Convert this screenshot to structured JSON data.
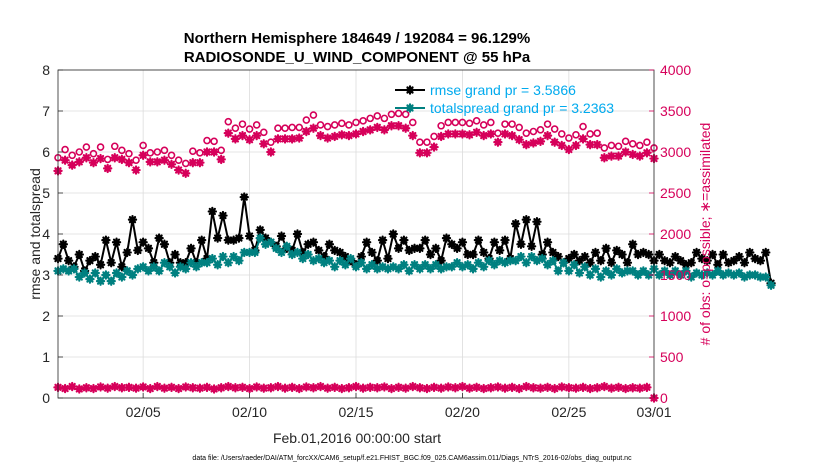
{
  "chart_data": {
    "type": "line",
    "title_line1": "Northern Hemisphere 184649 / 192084 = 96.129%",
    "title_line2": "RADIOSONDE_U_WIND_COMPONENT @ 55 hPa",
    "xlabel": "Feb.01,2016 00:00:00 start",
    "ylabel_left": "rmse and totalspread",
    "ylabel_right": "# of obs: o=possible; ∗=assimilated",
    "footer": "data file: /Users/raeder/DAI/ATM_forcXX/CAM6_setup/f.e21.FHIST_BGC.f09_025.CAM6assim.011/Diags_NTrS_2016-02/obs_diag_output.nc",
    "xlim": [
      1,
      29
    ],
    "ylim_left": [
      0,
      8
    ],
    "ylim_right": [
      0,
      4000
    ],
    "x_ticks": [
      5,
      10,
      15,
      20,
      25,
      29
    ],
    "x_tick_labels": [
      "02/05",
      "02/10",
      "02/15",
      "02/20",
      "02/25",
      "03/01"
    ],
    "y_left_ticks": [
      "0",
      "1",
      "2",
      "3",
      "4",
      "5",
      "6",
      "7",
      "8"
    ],
    "y_right_ticks": [
      "0",
      "500",
      "1000",
      "1500",
      "2000",
      "2500",
      "3000",
      "3500",
      "4000"
    ],
    "step_days": 0.25,
    "colors": {
      "rmse": "#000000",
      "spread": "#008080",
      "obs": "#d6005a",
      "legend_text": "#00aaee"
    },
    "series": [
      {
        "name": "rmse grand pr = 3.5866",
        "axis": "left",
        "color": "#000000",
        "marker": "star",
        "values": [
          3.4,
          3.75,
          3.35,
          3.2,
          3.5,
          3.1,
          3.35,
          3.45,
          3.25,
          3.85,
          3.3,
          3.8,
          3.2,
          3.55,
          4.35,
          3.6,
          3.8,
          3.65,
          3.3,
          3.9,
          3.75,
          3.3,
          3.5,
          3.3,
          3.3,
          3.65,
          3.3,
          3.85,
          3.4,
          4.55,
          3.9,
          4.45,
          3.85,
          3.85,
          3.9,
          4.9,
          3.95,
          3.6,
          4.1,
          3.9,
          3.8,
          3.7,
          3.95,
          3.65,
          3.6,
          4.0,
          3.55,
          3.75,
          3.8,
          3.6,
          3.45,
          3.75,
          3.6,
          3.55,
          3.45,
          3.35,
          3.25,
          3.45,
          3.8,
          3.55,
          3.35,
          3.85,
          3.4,
          4.0,
          3.65,
          3.85,
          3.6,
          3.65,
          3.65,
          3.85,
          3.5,
          3.65,
          3.35,
          3.9,
          3.75,
          3.65,
          3.8,
          3.5,
          3.5,
          3.85,
          3.55,
          3.4,
          3.8,
          3.6,
          3.85,
          3.4,
          4.25,
          3.75,
          4.35,
          3.7,
          4.3,
          3.5,
          3.8,
          3.55,
          3.45,
          3.3,
          3.4,
          3.5,
          3.35,
          3.45,
          3.3,
          3.55,
          3.35,
          3.65,
          3.3,
          3.6,
          3.5,
          3.3,
          3.75,
          3.5,
          3.55,
          3.5,
          3.35,
          3.5,
          3.35,
          3.3,
          3.45,
          3.35,
          3.25,
          3.3,
          3.55,
          3.4,
          3.35,
          3.5,
          3.25,
          3.5,
          3.3,
          3.35,
          3.45,
          3.3,
          3.55,
          3.4,
          3.35,
          3.55,
          2.8
        ]
      },
      {
        "name": "totalspread grand pr = 3.2363",
        "axis": "left",
        "color": "#008080",
        "marker": "star",
        "values": [
          3.1,
          3.15,
          3.1,
          3.15,
          2.95,
          3.05,
          2.9,
          3.05,
          2.85,
          3.0,
          2.85,
          3.05,
          2.95,
          3.1,
          3.0,
          3.15,
          3.2,
          3.1,
          3.2,
          3.1,
          3.3,
          3.2,
          3.05,
          3.2,
          3.15,
          3.3,
          3.2,
          3.3,
          3.3,
          3.4,
          3.25,
          3.45,
          3.3,
          3.45,
          3.35,
          3.55,
          3.55,
          3.55,
          3.9,
          3.75,
          3.8,
          3.65,
          3.55,
          3.7,
          3.5,
          3.55,
          3.4,
          3.5,
          3.35,
          3.4,
          3.3,
          3.35,
          3.2,
          3.35,
          3.25,
          3.4,
          3.2,
          3.3,
          3.15,
          3.25,
          3.15,
          3.2,
          3.15,
          3.2,
          3.15,
          3.25,
          3.1,
          3.25,
          3.15,
          3.25,
          3.15,
          3.25,
          3.15,
          3.2,
          3.2,
          3.3,
          3.2,
          3.25,
          3.15,
          3.3,
          3.2,
          3.35,
          3.25,
          3.35,
          3.3,
          3.35,
          3.35,
          3.45,
          3.3,
          3.45,
          3.35,
          3.4,
          3.25,
          3.35,
          3.1,
          3.3,
          3.1,
          3.25,
          3.05,
          3.2,
          3.0,
          3.15,
          2.95,
          3.1,
          3.0,
          3.15,
          3.05,
          3.1,
          3.1,
          3.0,
          3.1,
          3.0,
          3.15,
          3.0,
          3.1,
          3.0,
          3.1,
          3.0,
          3.1,
          2.95,
          3.05,
          3.0,
          3.05,
          3.0,
          3.1,
          3.0,
          3.05,
          3.0,
          3.05,
          2.95,
          3.0,
          3.0,
          2.95,
          2.95,
          2.75
        ]
      },
      {
        "name": "possible",
        "axis": "right",
        "color": "#d6005a",
        "marker": "circle",
        "values": [
          2930,
          3030,
          2960,
          3000,
          3060,
          2980,
          3060,
          2910,
          3070,
          3020,
          2980,
          2900,
          3080,
          2990,
          3000,
          3020,
          2960,
          2900,
          2860,
          3010,
          2990,
          3140,
          3130,
          3020,
          3370,
          3290,
          3340,
          3280,
          3330,
          3240,
          3120,
          3290,
          3290,
          3300,
          3300,
          3390,
          3450,
          3330,
          3310,
          3330,
          3350,
          3330,
          3360,
          3380,
          3410,
          3440,
          3410,
          3460,
          3470,
          3460,
          3360,
          3120,
          3120,
          3190,
          3320,
          3360,
          3360,
          3360,
          3350,
          3380,
          3330,
          3360,
          3230,
          3340,
          3340,
          3300,
          3230,
          3250,
          3270,
          3340,
          3280,
          3220,
          3170,
          3210,
          3310,
          3220,
          3230,
          3050,
          3080,
          3070,
          3130,
          3100,
          3080,
          3120,
          3050
        ]
      },
      {
        "name": "assimilated",
        "axis": "right",
        "color": "#d6005a",
        "marker": "star",
        "values": [
          2770,
          2900,
          2840,
          2880,
          2930,
          2870,
          2920,
          2800,
          2930,
          2910,
          2870,
          2780,
          2960,
          2880,
          2880,
          2900,
          2850,
          2780,
          2740,
          2870,
          2870,
          3000,
          3000,
          2910,
          3230,
          3160,
          3200,
          3150,
          3200,
          3100,
          3000,
          3160,
          3160,
          3160,
          3170,
          3250,
          3290,
          3200,
          3170,
          3190,
          3210,
          3200,
          3220,
          3250,
          3270,
          3300,
          3270,
          3320,
          3320,
          3290,
          3200,
          2990,
          2990,
          3060,
          3190,
          3220,
          3220,
          3220,
          3210,
          3240,
          3200,
          3220,
          3120,
          3220,
          3200,
          3150,
          3090,
          3110,
          3130,
          3200,
          3120,
          3080,
          3030,
          3080,
          3160,
          3090,
          3090,
          2930,
          2950,
          2950,
          3000,
          2970,
          2950,
          2990,
          2920
        ]
      },
      {
        "name": "assimilated (lower band)",
        "axis": "right",
        "color": "#d6005a",
        "marker": "star",
        "values": [
          130,
          115,
          140,
          110,
          125,
          115,
          135,
          120,
          140,
          125,
          130,
          120,
          135,
          115,
          140,
          120,
          130,
          115,
          135,
          125,
          120,
          130,
          110,
          125,
          140,
          125,
          130,
          115,
          135,
          120,
          125,
          140,
          120,
          130,
          115,
          135,
          125,
          140,
          120,
          130,
          115,
          125,
          140,
          120,
          130,
          125,
          135,
          115,
          130,
          120,
          140,
          125,
          115,
          130,
          120,
          135,
          125,
          140,
          120,
          130,
          115,
          125,
          135,
          120,
          130,
          115,
          140,
          125,
          120,
          130,
          115,
          135,
          125,
          120,
          130,
          115,
          125,
          140,
          120,
          130,
          115,
          125,
          120,
          130,
          0
        ]
      }
    ],
    "legend": [
      {
        "label": "rmse grand pr = 3.5866",
        "color": "#000000"
      },
      {
        "label": "totalspread grand pr = 3.2363",
        "color": "#008080"
      }
    ],
    "legend_position": "top-right"
  }
}
